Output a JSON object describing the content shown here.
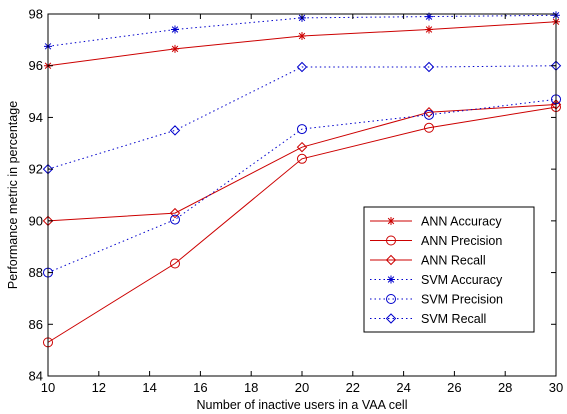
{
  "chart_data": {
    "type": "line",
    "title": "",
    "xlabel": "Number of inactive users in a VAA cell",
    "ylabel": "Performance metric in percentage",
    "xlim": [
      10,
      30
    ],
    "ylim": [
      84,
      98
    ],
    "xticks": [
      10,
      12,
      14,
      16,
      18,
      20,
      22,
      24,
      26,
      28,
      30
    ],
    "yticks": [
      84,
      86,
      88,
      90,
      92,
      94,
      96,
      98
    ],
    "grid": false,
    "legend_position": "center-right",
    "x": [
      10,
      15,
      20,
      25,
      30
    ],
    "series": [
      {
        "name": "ANN Accuracy",
        "values": [
          96.0,
          96.65,
          97.15,
          97.4,
          97.7
        ],
        "color": "#cc0000",
        "linestyle": "solid",
        "marker": "asterisk"
      },
      {
        "name": "ANN Precision",
        "values": [
          85.3,
          88.35,
          92.4,
          93.6,
          94.4
        ],
        "color": "#cc0000",
        "linestyle": "solid",
        "marker": "circle"
      },
      {
        "name": "ANN Recall",
        "values": [
          90.0,
          90.3,
          92.85,
          94.2,
          94.5
        ],
        "color": "#cc0000",
        "linestyle": "solid",
        "marker": "diamond"
      },
      {
        "name": "SVM Accuracy",
        "values": [
          96.75,
          97.4,
          97.85,
          97.9,
          97.95
        ],
        "color": "#0000cc",
        "linestyle": "dotted",
        "marker": "asterisk"
      },
      {
        "name": "SVM Precision",
        "values": [
          88.0,
          90.05,
          93.55,
          94.1,
          94.7
        ],
        "color": "#0000cc",
        "linestyle": "dotted",
        "marker": "circle"
      },
      {
        "name": "SVM Recall",
        "values": [
          92.0,
          93.5,
          95.95,
          95.95,
          96.0
        ],
        "color": "#0000cc",
        "linestyle": "dotted",
        "marker": "diamond"
      }
    ]
  }
}
